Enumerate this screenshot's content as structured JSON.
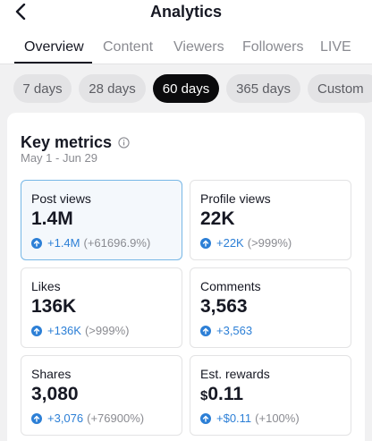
{
  "header": {
    "title": "Analytics"
  },
  "tabs": [
    {
      "label": "Overview",
      "active": true
    },
    {
      "label": "Content",
      "active": false
    },
    {
      "label": "Viewers",
      "active": false
    },
    {
      "label": "Followers",
      "active": false
    },
    {
      "label": "LIVE",
      "active": false
    }
  ],
  "ranges": [
    {
      "label": "7 days",
      "active": false
    },
    {
      "label": "28 days",
      "active": false
    },
    {
      "label": "60 days",
      "active": true
    },
    {
      "label": "365 days",
      "active": false
    },
    {
      "label": "Custom",
      "active": false
    }
  ],
  "key_metrics": {
    "title": "Key metrics",
    "date_range": "May 1 - Jun 29",
    "metrics": [
      {
        "label": "Post views",
        "value": "1.4M",
        "delta": "+1.4M",
        "pct": "(+61696.9%)"
      },
      {
        "label": "Profile views",
        "value": "22K",
        "delta": "+22K",
        "pct": "(>999%)"
      },
      {
        "label": "Likes",
        "value": "136K",
        "delta": "+136K",
        "pct": "(>999%)"
      },
      {
        "label": "Comments",
        "value": "3,563",
        "delta": "+3,563",
        "pct": ""
      },
      {
        "label": "Shares",
        "value": "3,080",
        "delta": "+3,076",
        "pct": "(+76900%)"
      },
      {
        "label": "Est. rewards",
        "currency": "$",
        "value": "0.11",
        "delta": "+$0.11",
        "pct": "(+100%)"
      }
    ]
  },
  "colors": {
    "accent": "#2c7fd6",
    "active_chip": "#0b0b0d",
    "selected_border": "#77b7e6"
  }
}
